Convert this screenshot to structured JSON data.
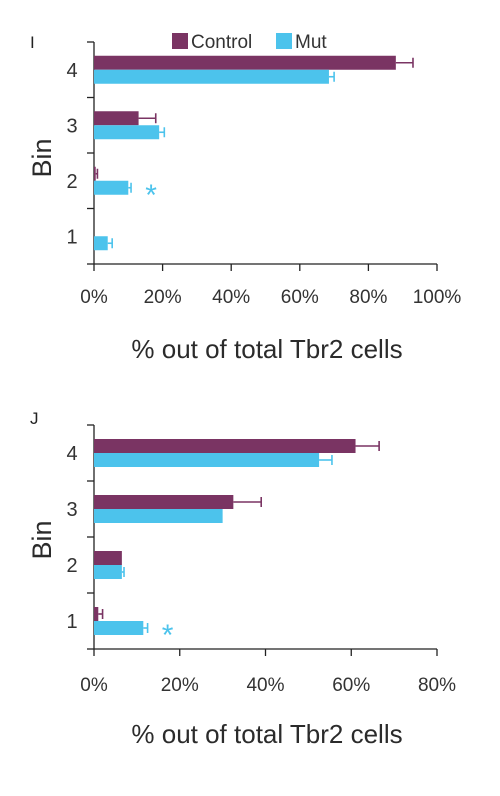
{
  "colors": {
    "control": "#7a3463",
    "mut": "#4cc3ec",
    "axis": "#222222"
  },
  "legend": {
    "items": [
      {
        "label": "Control",
        "color": "#7a3463"
      },
      {
        "label": "Mut",
        "color": "#4cc3ec"
      }
    ]
  },
  "chart_data": [
    {
      "panel": "I",
      "type": "bar",
      "orientation": "horizontal",
      "categories": [
        "4",
        "3",
        "2",
        "1"
      ],
      "series": [
        {
          "name": "Control",
          "values": [
            88,
            13,
            0.5,
            0
          ],
          "errors": [
            5,
            5,
            0.5,
            0
          ]
        },
        {
          "name": "Mut",
          "values": [
            68.5,
            19,
            10,
            4
          ],
          "errors": [
            1.5,
            1.5,
            0.8,
            1.3
          ]
        }
      ],
      "significance": [
        {
          "category": "2",
          "series": "Mut",
          "marker": "*"
        }
      ],
      "xlabel": "% out of total Tbr2 cells",
      "ylabel": "Bin",
      "xlim": [
        0,
        100
      ],
      "xticks": [
        "0%",
        "20%",
        "40%",
        "60%",
        "80%",
        "100%"
      ],
      "legend_position": "top"
    },
    {
      "panel": "J",
      "type": "bar",
      "orientation": "horizontal",
      "categories": [
        "4",
        "3",
        "2",
        "1"
      ],
      "series": [
        {
          "name": "Control",
          "values": [
            61,
            32.5,
            6.5,
            1
          ],
          "errors": [
            5.5,
            6.5,
            0,
            1
          ]
        },
        {
          "name": "Mut",
          "values": [
            52.5,
            30,
            6.5,
            11.5
          ],
          "errors": [
            3,
            0,
            0.5,
            1
          ]
        }
      ],
      "significance": [
        {
          "category": "1",
          "series": "Mut",
          "marker": "*"
        }
      ],
      "xlabel": "% out of total Tbr2 cells",
      "ylabel": "Bin",
      "xlim": [
        0,
        80
      ],
      "xticks": [
        "0%",
        "20%",
        "40%",
        "60%",
        "80%"
      ]
    }
  ]
}
